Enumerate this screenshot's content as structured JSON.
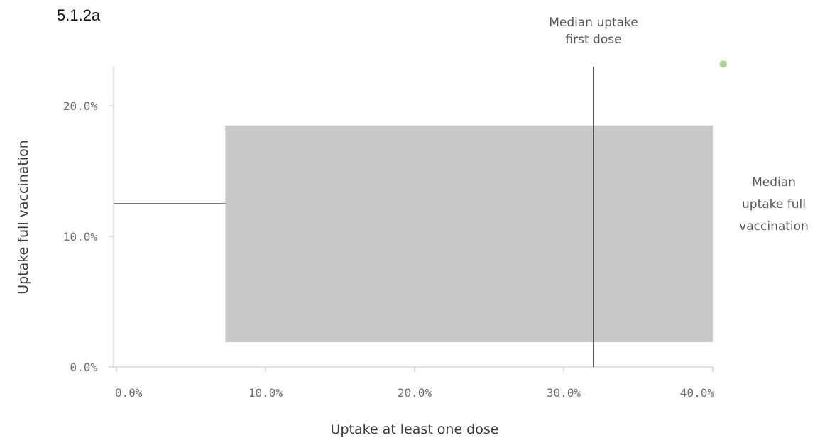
{
  "figure_label": "5.1.2a",
  "chart_data": {
    "type": "scatter",
    "title": "",
    "xlabel": "Uptake at least one dose",
    "ylabel": "Uptake full vaccination",
    "xlim": [
      0,
      40
    ],
    "ylim": [
      0,
      23
    ],
    "x_ticks": [
      0,
      10,
      20,
      30,
      40
    ],
    "y_ticks": [
      0,
      10,
      20
    ],
    "x_tick_labels": [
      "0.0%",
      "10.0%",
      "20.0%",
      "30.0%",
      "40.0%"
    ],
    "y_tick_labels": [
      "0.0%",
      "10.0%",
      "20.0%"
    ],
    "grid": false,
    "shaded_region": {
      "x0": 7.3,
      "x1": 40,
      "y0": 1.9,
      "y1": 18.5,
      "color": "#c8c9cb"
    },
    "median_x": {
      "value": 32,
      "label_lines": [
        "Median uptake",
        "first dose"
      ]
    },
    "median_y": {
      "value": 12.5,
      "label_lines": [
        "Median",
        "uptake full",
        "vaccination"
      ]
    },
    "points": [
      {
        "x": 40.7,
        "y": 23.2,
        "color": "#a6d68b"
      }
    ]
  }
}
